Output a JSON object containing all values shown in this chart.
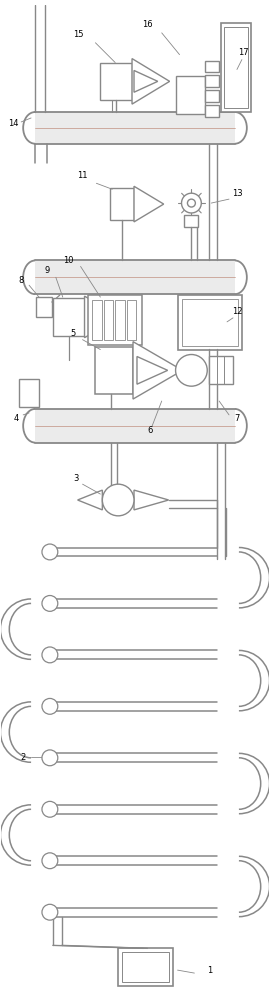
{
  "bg_color": "#ffffff",
  "lc": "#888888",
  "lw": 1.0,
  "figsize": [
    2.7,
    10.0
  ],
  "dpi": 100,
  "conveyor_green": "#b8d4b8",
  "conveyor_pink": "#e8c8b8",
  "label_fs": 6.5
}
